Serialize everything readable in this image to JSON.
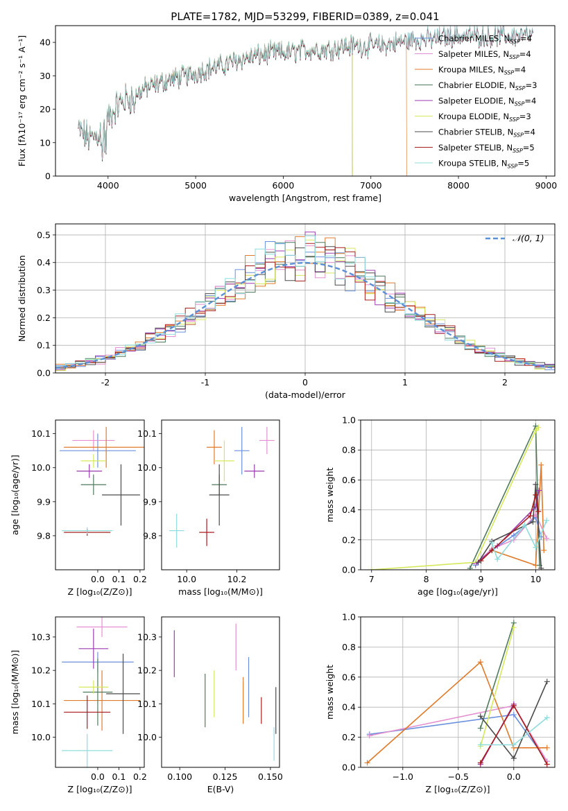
{
  "figure": {
    "title": "PLATE=1782, MJD=53299, FIBERID=0389, z=0.041"
  },
  "colors": {
    "Chabrier MILES": "#6a8fdc",
    "Salpeter MILES": "#e48fcf",
    "Kroupa MILES": "#e07a2a",
    "Chabrier ELODIE": "#4f7a5a",
    "Salpeter ELODIE": "#9b3ab0",
    "Kroupa ELODIE": "#d6e85a",
    "Chabrier STELIB": "#4a4a4a",
    "Salpeter STELIB": "#a81c1c",
    "Kroupa STELIB": "#8fdbdb",
    "normal": "#5b8fd6"
  },
  "chart_data": [
    {
      "type": "line",
      "name": "spectrum",
      "xlabel": "wavelength [Angstrom, rest frame]",
      "ylabel": "Flux [fλ10⁻¹⁷ erg cm⁻² s⁻¹ A⁻¹]",
      "xlim": [
        3400,
        9100
      ],
      "ylim": [
        0,
        45
      ],
      "xticks": [
        4000,
        5000,
        6000,
        7000,
        8000,
        9000
      ],
      "yticks": [
        0,
        10,
        20,
        30,
        40
      ],
      "grid": false,
      "legend_position": "top-right",
      "continuum": {
        "x": [
          3650,
          3800,
          3900,
          4000,
          4100,
          4200,
          4300,
          4400,
          4500,
          4700,
          4900,
          5100,
          5300,
          5500,
          5700,
          5900,
          6100,
          6300,
          6500,
          6700,
          6900,
          7100,
          7300,
          7500,
          7700,
          7900,
          8100,
          8300,
          8500,
          8700,
          8850
        ],
        "y": [
          14,
          11,
          13,
          17,
          21,
          23,
          24,
          26,
          27,
          29,
          30,
          32,
          33,
          35,
          36,
          37,
          37,
          38,
          38,
          39,
          39,
          39,
          40,
          41,
          41,
          42,
          42,
          42,
          42,
          42,
          42
        ]
      },
      "series": [
        {
          "name": "Chabrier MILES",
          "nssp": "4",
          "x_end": 8850,
          "drop_at": null
        },
        {
          "name": "Salpeter MILES",
          "nssp": "4",
          "x_end": 8850,
          "drop_at": null
        },
        {
          "name": "Kroupa MILES",
          "nssp": "4",
          "x_end": 7410,
          "drop_at": 7410
        },
        {
          "name": "Chabrier ELODIE",
          "nssp": "3",
          "x_end": 6790,
          "drop_at": 6790
        },
        {
          "name": "Salpeter ELODIE",
          "nssp": "4",
          "x_end": 6790,
          "drop_at": 6790
        },
        {
          "name": "Kroupa ELODIE",
          "nssp": "3",
          "x_end": 6790,
          "drop_at": 6790
        },
        {
          "name": "Chabrier STELIB",
          "nssp": "4",
          "x_end": 8850,
          "drop_at": null
        },
        {
          "name": "Salpeter STELIB",
          "nssp": "5",
          "x_end": 8850,
          "drop_at": null
        },
        {
          "name": "Kroupa STELIB",
          "nssp": "5",
          "x_end": 8850,
          "drop_at": null
        }
      ]
    },
    {
      "type": "histogram",
      "name": "residuals",
      "xlabel": "(data-model)/error",
      "ylabel": "Normed distribution",
      "xlim": [
        -2.5,
        2.5
      ],
      "ylim": [
        0,
        0.54
      ],
      "xticks": [
        -2,
        -1,
        0,
        1,
        2
      ],
      "yticks": [
        0.0,
        0.1,
        0.2,
        0.3,
        0.4,
        0.5
      ],
      "grid": true,
      "legend_position": "top-right",
      "curve_label": "𝒩(0, 1)",
      "bin_width": 0.1
    },
    {
      "type": "errorbar",
      "name": "Z-age",
      "xlabel": "Z [log₁₀(Z/Z⊙)]",
      "ylabel": "age  [log₁₀(age/yr)]",
      "xlim": [
        -0.2,
        0.22
      ],
      "ylim": [
        9.7,
        10.14
      ],
      "xticks": [
        0.0,
        0.1,
        0.2
      ],
      "yticks": [
        9.8,
        9.9,
        10.0,
        10.1
      ],
      "points": [
        {
          "series": "Chabrier MILES",
          "x": 0.0,
          "xerr": 0.18,
          "y": 10.05,
          "yerr": 0.05
        },
        {
          "series": "Salpeter MILES",
          "x": -0.02,
          "xerr": 0.1,
          "y": 10.08,
          "yerr": 0.03
        },
        {
          "series": "Kroupa MILES",
          "x": 0.04,
          "xerr": 0.2,
          "y": 10.06,
          "yerr": 0.06
        },
        {
          "series": "Chabrier ELODIE",
          "x": -0.02,
          "xerr": 0.06,
          "y": 9.95,
          "yerr": 0.03
        },
        {
          "series": "Salpeter ELODIE",
          "x": -0.04,
          "xerr": 0.06,
          "y": 9.99,
          "yerr": 0.02
        },
        {
          "series": "Kroupa ELODIE",
          "x": -0.02,
          "xerr": 0.06,
          "y": 10.02,
          "yerr": 0.02
        },
        {
          "series": "Chabrier STELIB",
          "x": 0.11,
          "xerr": 0.09,
          "y": 9.92,
          "yerr": 0.09
        },
        {
          "series": "Salpeter STELIB",
          "x": -0.05,
          "xerr": 0.11,
          "y": 9.81,
          "yerr": 0.01
        },
        {
          "series": "Kroupa STELIB",
          "x": -0.05,
          "xerr": 0.12,
          "y": 9.815,
          "yerr": 0.01
        }
      ]
    },
    {
      "type": "errorbar",
      "name": "mass-age",
      "xlabel": "mass [log₁₀(M/M⊙)]",
      "ylabel": "",
      "xlim": [
        9.9,
        10.37
      ],
      "ylim": [
        9.7,
        10.14
      ],
      "xticks": [
        10.0,
        10.2
      ],
      "yticks": [
        9.8,
        9.9,
        10.0,
        10.1
      ],
      "points": [
        {
          "series": "Chabrier MILES",
          "x": 10.22,
          "xerr": 0.03,
          "y": 10.05,
          "yerr": 0.07
        },
        {
          "series": "Salpeter MILES",
          "x": 10.32,
          "xerr": 0.03,
          "y": 10.08,
          "yerr": 0.04
        },
        {
          "series": "Kroupa MILES",
          "x": 10.11,
          "xerr": 0.03,
          "y": 10.06,
          "yerr": 0.05
        },
        {
          "series": "Chabrier ELODIE",
          "x": 10.13,
          "xerr": 0.03,
          "y": 9.95,
          "yerr": 0.03
        },
        {
          "series": "Salpeter ELODIE",
          "x": 10.27,
          "xerr": 0.04,
          "y": 9.99,
          "yerr": 0.02
        },
        {
          "series": "Kroupa ELODIE",
          "x": 10.15,
          "xerr": 0.04,
          "y": 10.02,
          "yerr": 0.06
        },
        {
          "series": "Chabrier STELIB",
          "x": 10.13,
          "xerr": 0.04,
          "y": 9.92,
          "yerr": 0.09
        },
        {
          "series": "Salpeter STELIB",
          "x": 10.08,
          "xerr": 0.03,
          "y": 9.81,
          "yerr": 0.04
        },
        {
          "series": "Kroupa STELIB",
          "x": 9.96,
          "xerr": 0.03,
          "y": 9.815,
          "yerr": 0.05
        }
      ]
    },
    {
      "type": "line",
      "name": "age-weight",
      "xlabel": "age  [log₁₀(age/yr)]",
      "ylabel": "mass weight",
      "xlim": [
        6.8,
        10.35
      ],
      "ylim": [
        0,
        1.0
      ],
      "xticks": [
        7,
        8,
        9,
        10
      ],
      "yticks": [
        0.0,
        0.2,
        0.4,
        0.6,
        0.8,
        1.0
      ],
      "grid": true,
      "series": [
        {
          "name": "Chabrier MILES",
          "x": [
            8.9,
            9.2,
            9.6,
            10.0,
            10.1
          ],
          "y": [
            0.03,
            0.13,
            0.23,
            0.35,
            0.22
          ]
        },
        {
          "name": "Salpeter MILES",
          "x": [
            8.9,
            9.2,
            9.6,
            10.0,
            10.2
          ],
          "y": [
            0.04,
            0.14,
            0.2,
            0.37,
            0.21
          ]
        },
        {
          "name": "Kroupa MILES",
          "x": [
            9.2,
            10.0,
            10.1,
            10.15
          ],
          "y": [
            0.13,
            0.03,
            0.7,
            0.13
          ]
        },
        {
          "name": "Chabrier ELODIE",
          "x": [
            8.8,
            10.0,
            10.07
          ],
          "y": [
            0.01,
            0.96,
            0.03
          ]
        },
        {
          "name": "Salpeter ELODIE",
          "x": [
            8.9,
            9.3,
            10.0,
            10.06
          ],
          "y": [
            0.04,
            0.16,
            0.42,
            0.53
          ]
        },
        {
          "name": "Kroupa ELODIE",
          "x": [
            7.0,
            8.9,
            10.0,
            10.05
          ],
          "y": [
            0.0,
            0.05,
            0.93,
            0.95
          ]
        },
        {
          "name": "Chabrier STELIB",
          "x": [
            8.95,
            9.2,
            9.95,
            10.0,
            10.1
          ],
          "y": [
            0.05,
            0.19,
            0.32,
            0.57,
            0.01
          ]
        },
        {
          "name": "Salpeter STELIB",
          "x": [
            9.0,
            9.2,
            9.9,
            10.0,
            10.05
          ],
          "y": [
            0.06,
            0.13,
            0.36,
            0.5,
            0.39
          ]
        },
        {
          "name": "Kroupa STELIB",
          "x": [
            9.2,
            9.3,
            9.8,
            10.0,
            10.2
          ],
          "y": [
            0.18,
            0.07,
            0.3,
            0.15,
            0.33
          ]
        }
      ]
    },
    {
      "type": "errorbar",
      "name": "Z-mass",
      "xlabel": "Z [log₁₀(Z/Z⊙)]",
      "ylabel": "mass [log₁₀(M/M⊙)]",
      "xlim": [
        -0.2,
        0.22
      ],
      "ylim": [
        9.91,
        10.36
      ],
      "xticks": [
        0.0,
        0.1,
        0.2
      ],
      "yticks": [
        10.0,
        10.1,
        10.2,
        10.3
      ],
      "points": [
        {
          "series": "Chabrier MILES",
          "x": 0.0,
          "xerr": 0.17,
          "y": 10.225,
          "yerr": 0.03
        },
        {
          "series": "Salpeter MILES",
          "x": 0.02,
          "xerr": 0.12,
          "y": 10.33,
          "yerr": 0.03
        },
        {
          "series": "Kroupa MILES",
          "x": 0.02,
          "xerr": 0.18,
          "y": 10.11,
          "yerr": 0.09
        },
        {
          "series": "Chabrier ELODIE",
          "x": 0.0,
          "xerr": 0.07,
          "y": 10.135,
          "yerr": 0.1
        },
        {
          "series": "Salpeter ELODIE",
          "x": -0.02,
          "xerr": 0.07,
          "y": 10.265,
          "yerr": 0.06
        },
        {
          "series": "Kroupa ELODIE",
          "x": -0.02,
          "xerr": 0.07,
          "y": 10.15,
          "yerr": 0.02
        },
        {
          "series": "Chabrier STELIB",
          "x": 0.12,
          "xerr": 0.08,
          "y": 10.13,
          "yerr": 0.12
        },
        {
          "series": "Salpeter STELIB",
          "x": -0.05,
          "xerr": 0.11,
          "y": 10.075,
          "yerr": 0.05
        },
        {
          "series": "Kroupa STELIB",
          "x": -0.05,
          "xerr": 0.12,
          "y": 9.96,
          "yerr": 0.05
        }
      ]
    },
    {
      "type": "errorbar",
      "name": "ebv-mass",
      "xlabel": "E(B-V)",
      "ylabel": "",
      "xlim": [
        0.09,
        0.155
      ],
      "ylim": [
        9.91,
        10.36
      ],
      "xticks": [
        0.1,
        0.125,
        0.15
      ],
      "xtick_labels": [
        "0.100",
        "0.125",
        "0.150"
      ],
      "yticks": [
        10.0,
        10.1,
        10.2,
        10.3
      ],
      "points": [
        {
          "series": "Chabrier MILES",
          "x": 0.138,
          "y": 10.15,
          "yerr": 0.09
        },
        {
          "series": "Salpeter MILES",
          "x": 0.131,
          "y": 10.27,
          "yerr": 0.07
        },
        {
          "series": "Kroupa MILES",
          "x": 0.135,
          "y": 10.11,
          "yerr": 0.07
        },
        {
          "series": "Chabrier ELODIE",
          "x": 0.114,
          "y": 10.11,
          "yerr": 0.08
        },
        {
          "series": "Salpeter ELODIE",
          "x": 0.097,
          "y": 10.25,
          "yerr": 0.07
        },
        {
          "series": "Kroupa ELODIE",
          "x": 0.119,
          "y": 10.13,
          "yerr": 0.07
        },
        {
          "series": "Chabrier STELIB",
          "x": 0.153,
          "y": 10.08,
          "yerr": 0.07
        },
        {
          "series": "Salpeter STELIB",
          "x": 0.145,
          "y": 10.08,
          "yerr": 0.04
        },
        {
          "series": "Kroupa STELIB",
          "x": 0.152,
          "y": 9.98,
          "yerr": 0.05
        }
      ]
    },
    {
      "type": "line",
      "name": "Z-weight",
      "xlabel": "Z [log₁₀(Z/Z⊙)]",
      "ylabel": "mass weight",
      "xlim": [
        -1.38,
        0.37
      ],
      "ylim": [
        0,
        1.0
      ],
      "xticks": [
        -1.0,
        -0.5,
        0.0
      ],
      "xtick_labels": [
        "−1.0",
        "−0.5",
        "0.0"
      ],
      "yticks": [
        0.0,
        0.2,
        0.4,
        0.6,
        0.8,
        1.0
      ],
      "grid": true,
      "series": [
        {
          "name": "Chabrier MILES",
          "x": [
            -1.3,
            0.0,
            0.3
          ],
          "y": [
            0.22,
            0.35,
            0.04
          ]
        },
        {
          "name": "Salpeter MILES",
          "x": [
            -1.3,
            0.0,
            0.3
          ],
          "y": [
            0.21,
            0.41,
            0.04
          ]
        },
        {
          "name": "Kroupa MILES",
          "x": [
            -1.32,
            -0.3,
            0.0,
            0.3
          ],
          "y": [
            0.03,
            0.7,
            0.13,
            0.13
          ]
        },
        {
          "name": "Chabrier ELODIE",
          "x": [
            -0.3,
            0.0
          ],
          "y": [
            0.26,
            0.96
          ]
        },
        {
          "name": "Salpeter ELODIE",
          "x": [
            -0.3,
            0.0
          ],
          "y": [
            0.02,
            0.42
          ]
        },
        {
          "name": "Kroupa ELODIE",
          "x": [
            -0.3,
            0.0
          ],
          "y": [
            0.14,
            0.93
          ]
        },
        {
          "name": "Chabrier STELIB",
          "x": [
            -0.3,
            0.0,
            0.3
          ],
          "y": [
            0.34,
            0.06,
            0.57
          ]
        },
        {
          "name": "Salpeter STELIB",
          "x": [
            -0.3,
            0.0,
            0.3
          ],
          "y": [
            0.03,
            0.41,
            0.02
          ]
        },
        {
          "name": "Kroupa STELIB",
          "x": [
            -0.3,
            0.0,
            0.3
          ],
          "y": [
            0.15,
            0.15,
            0.33
          ]
        }
      ]
    }
  ]
}
